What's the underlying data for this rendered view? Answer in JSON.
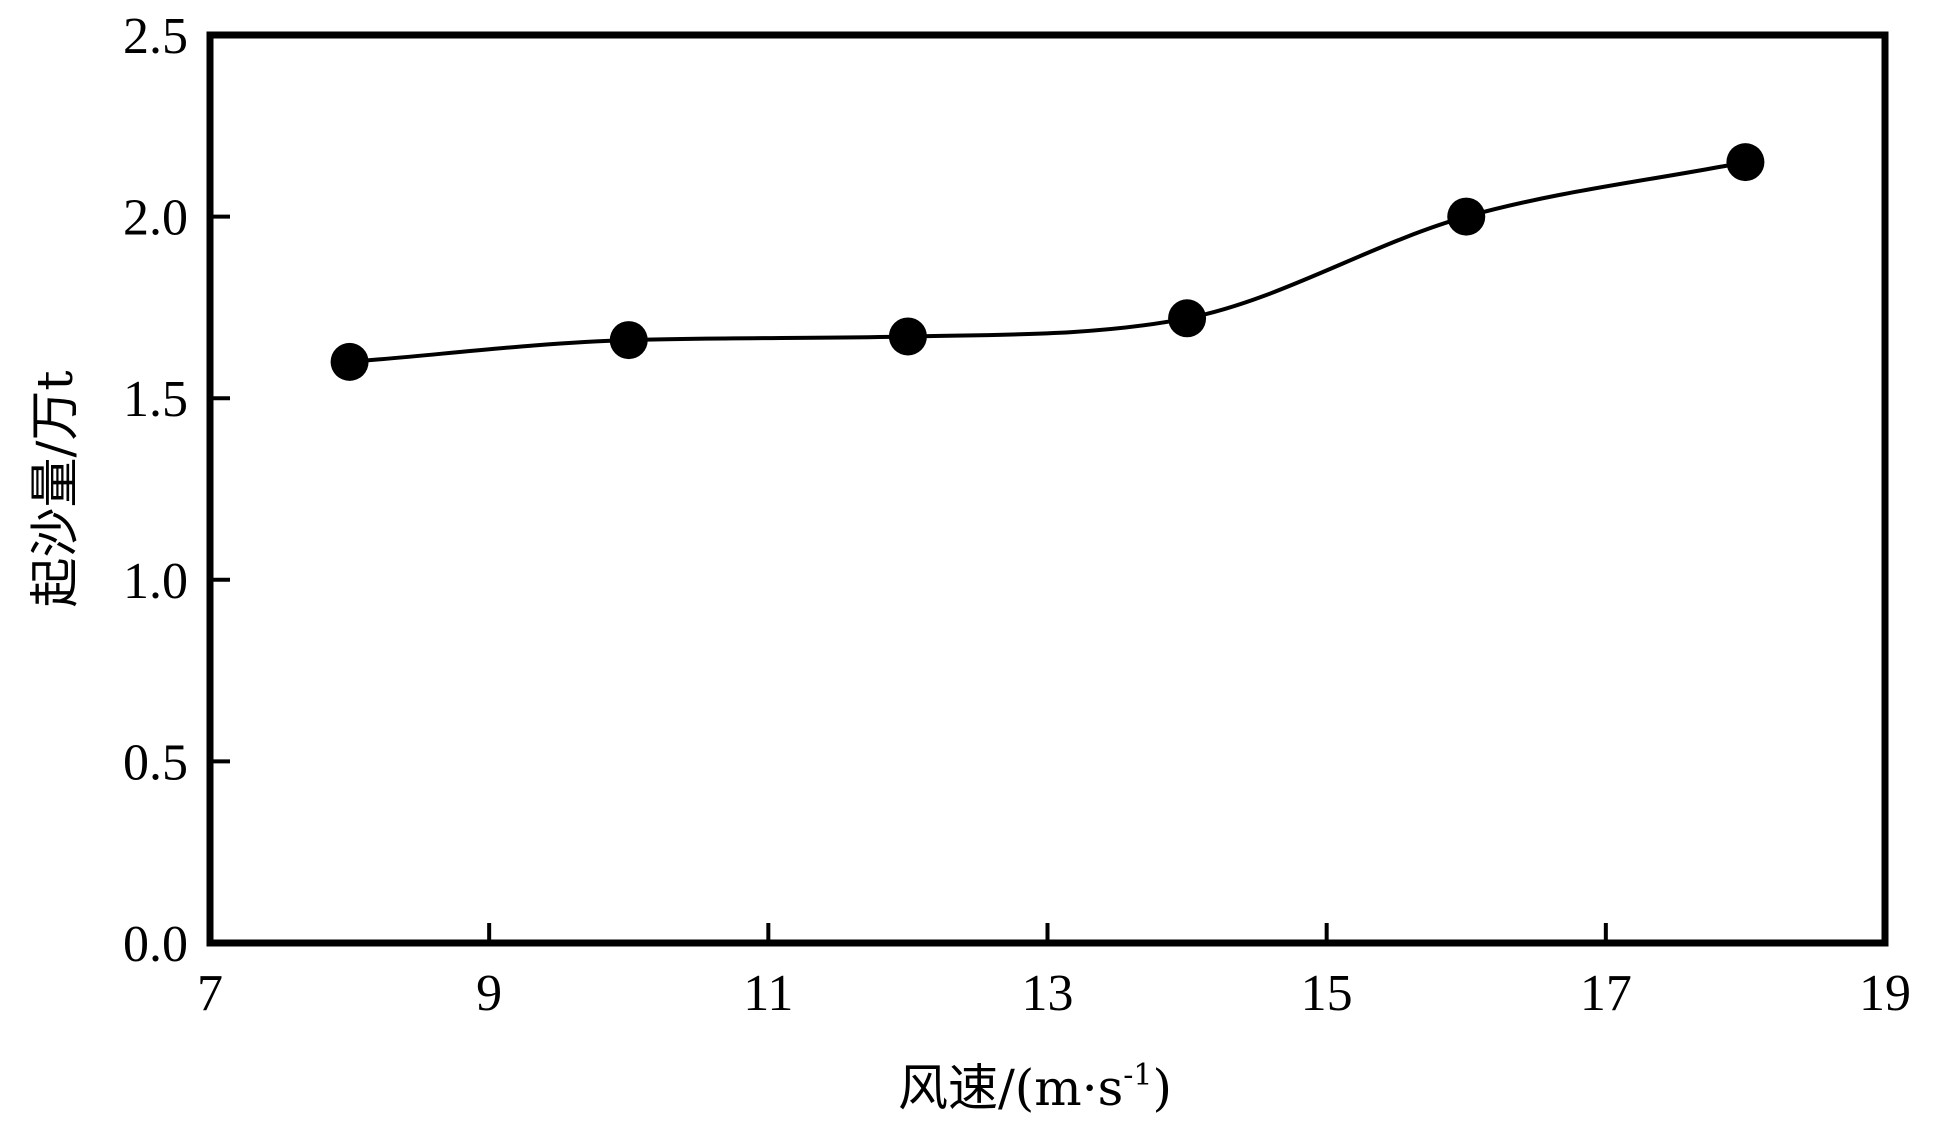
{
  "chart_data": {
    "type": "line",
    "x": [
      8,
      10,
      12,
      14,
      16,
      18
    ],
    "series": [
      {
        "values": [
          1.6,
          1.66,
          1.67,
          1.72,
          2.0,
          2.15
        ]
      }
    ],
    "xlabel": "风速/(m·s-1)",
    "xlabel_parts": {
      "main": "风速/(m·s",
      "superscript": "-1",
      "close": ")"
    },
    "ylabel": "起沙量/万t",
    "xlim": [
      7,
      19
    ],
    "ylim": [
      0.0,
      2.5
    ],
    "xticks": [
      7,
      9,
      11,
      13,
      15,
      17,
      19
    ],
    "yticks": [
      "0.0",
      "0.5",
      "1.0",
      "1.5",
      "2.0",
      "2.5"
    ],
    "grid": false,
    "legend": "none",
    "marker": "filled-circle",
    "line_style": "smooth",
    "colors": {
      "line": "#000000",
      "marker": "#000000",
      "axes": "#000000"
    }
  }
}
